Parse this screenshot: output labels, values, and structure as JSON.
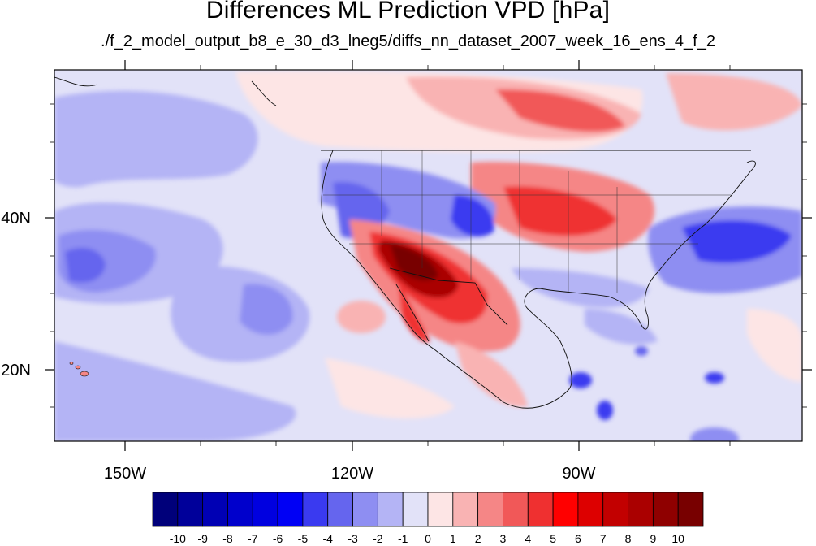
{
  "title": "Differences ML Prediction VPD [hPa]",
  "subtitle": "./f_2_model_output_b8_e_30_d3_lneg5/diffs_nn_dataset_2007_week_16_ens_4_f_2",
  "axes": {
    "lon_labels": [
      "150W",
      "120W",
      "90W"
    ],
    "lat_labels": [
      "40N",
      "20N"
    ]
  },
  "colorbar": {
    "labels": [
      "-10",
      "-9",
      "-8",
      "-7",
      "-6",
      "-5",
      "-4",
      "-3",
      "-2",
      "-1",
      "0",
      "1",
      "2",
      "3",
      "4",
      "5",
      "6",
      "7",
      "8",
      "9",
      "10"
    ],
    "colors": [
      "#00007a",
      "#00009a",
      "#0000b4",
      "#0000cc",
      "#0000e0",
      "#0000f5",
      "#3a3af0",
      "#6565ee",
      "#8e8ef2",
      "#b4b4f5",
      "#e2e2f8",
      "#fde5e5",
      "#f9b3b3",
      "#f58686",
      "#f15858",
      "#ef3030",
      "#ff0000",
      "#dd0000",
      "#c20000",
      "#aa0000",
      "#8f0000",
      "#780000"
    ]
  },
  "map_colors": {
    "ocean_base": "#e2e2f8",
    "light_blue": "#b4b4f5",
    "mid_blue": "#8e8ef2",
    "blue": "#6565ee",
    "deep_blue": "#3a3af0",
    "pale_red": "#fde5e5",
    "light_red": "#f9b3b3",
    "mid_red": "#f58686",
    "red": "#ef3030",
    "dark_red": "#aa0000",
    "deepest_red": "#780000"
  }
}
